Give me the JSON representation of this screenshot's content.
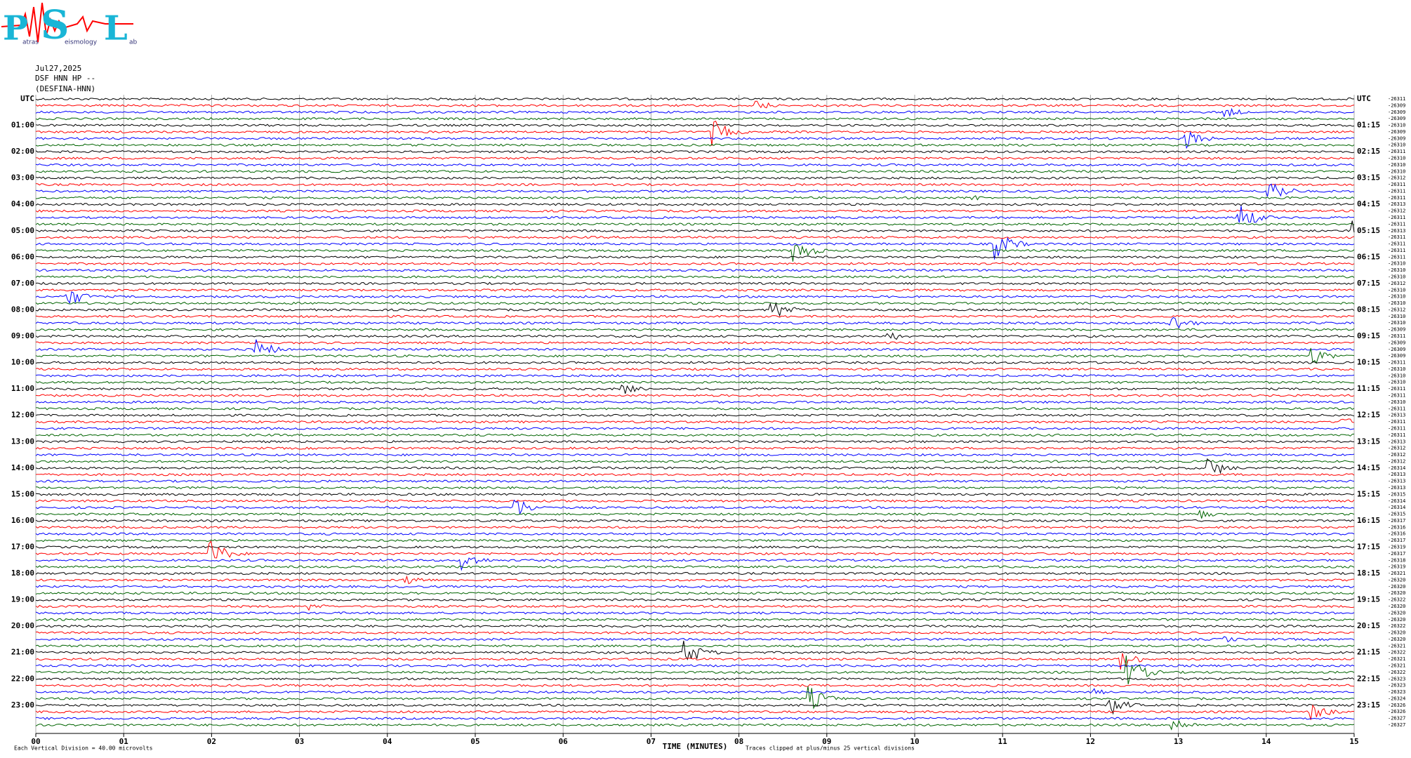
{
  "logo": {
    "letters": [
      "P",
      "S",
      "L"
    ],
    "words": [
      "atras",
      "eismology",
      "ab"
    ]
  },
  "header": {
    "date": "Jul27,2025",
    "station": "DSF HNN HP --",
    "name": "(DESFINA-HNN)"
  },
  "left_labels": [
    "UTC",
    "01:00",
    "02:00",
    "03:00",
    "04:00",
    "05:00",
    "06:00",
    "07:00",
    "08:00",
    "09:00",
    "10:00",
    "11:00",
    "12:00",
    "13:00",
    "14:00",
    "15:00",
    "16:00",
    "17:00",
    "18:00",
    "19:00",
    "20:00",
    "21:00",
    "22:00",
    "23:00"
  ],
  "right_labels": [
    "UTC",
    "01:15",
    "02:15",
    "03:15",
    "04:15",
    "05:15",
    "06:15",
    "07:15",
    "08:15",
    "09:15",
    "10:15",
    "11:15",
    "12:15",
    "13:15",
    "14:15",
    "15:15",
    "16:15",
    "17:15",
    "18:15",
    "19:15",
    "20:15",
    "21:15",
    "22:15",
    "23:15"
  ],
  "offsets": [
    "-26311",
    "-26309",
    "-26309",
    "-26309",
    "-26310",
    "-26309",
    "-26309",
    "-26310",
    "-26311",
    "-26310",
    "-26310",
    "-26310",
    "-26312",
    "-26311",
    "-26311",
    "-26311",
    "-26313",
    "-26312",
    "-26311",
    "-26311",
    "-26313",
    "-26311",
    "-26311",
    "-26311",
    "-26311",
    "-26310",
    "-26310",
    "-26310",
    "-26312",
    "-26310",
    "-26310",
    "-26310",
    "-26312",
    "-26310",
    "-26310",
    "-26309",
    "-26311",
    "-26309",
    "-26309",
    "-26309",
    "-26311",
    "-26310",
    "-26310",
    "-26310",
    "-26311",
    "-26311",
    "-26310",
    "-26311",
    "-26313",
    "-26311",
    "-26311",
    "-26311",
    "-26313",
    "-26312",
    "-26312",
    "-26312",
    "-26314",
    "-26313",
    "-26313",
    "-26313",
    "-26315",
    "-26314",
    "-26314",
    "-26315",
    "-26317",
    "-26316",
    "-26316",
    "-26317",
    "-26319",
    "-26317",
    "-26318",
    "-26319",
    "-26321",
    "-26320",
    "-26320",
    "-26320",
    "-26322",
    "-26320",
    "-26320",
    "-26320",
    "-26322",
    "-26320",
    "-26320",
    "-26321",
    "-26322",
    "-26321",
    "-26321",
    "-26322",
    "-26323",
    "-26323",
    "-26323",
    "-26324",
    "-26326",
    "-26326",
    "-26327",
    "-26327"
  ],
  "x_axis": {
    "ticks": [
      "00",
      "01",
      "02",
      "03",
      "04",
      "05",
      "06",
      "07",
      "08",
      "09",
      "10",
      "11",
      "12",
      "13",
      "14",
      "15"
    ],
    "title": "TIME (MINUTES)"
  },
  "footer": {
    "division": "Each Vertical Division =   40.00 microvolts",
    "clip": "Traces clipped at plus/minus 25 vertical divisions"
  }
}
